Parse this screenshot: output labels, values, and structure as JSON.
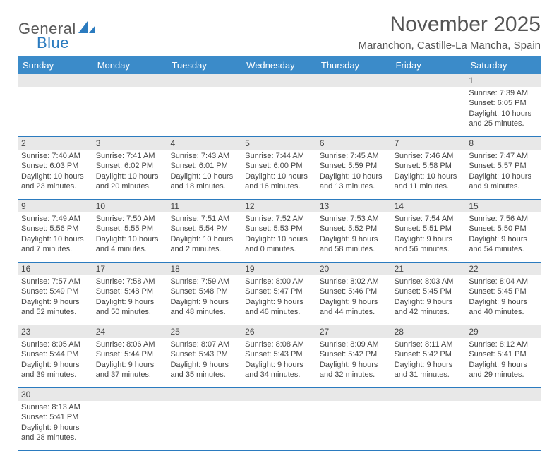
{
  "logo": {
    "part1": "General",
    "part2": "Blue"
  },
  "title": "November 2025",
  "location": "Maranchon, Castille-La Mancha, Spain",
  "day_headers": [
    "Sunday",
    "Monday",
    "Tuesday",
    "Wednesday",
    "Thursday",
    "Friday",
    "Saturday"
  ],
  "colors": {
    "header_bg": "#3b8bc9",
    "border": "#2b7bbf",
    "daynum_bg": "#e8e8e8",
    "text": "#444444",
    "logo_blue": "#2b7bbf"
  },
  "weeks": [
    {
      "nums": [
        "",
        "",
        "",
        "",
        "",
        "",
        "1"
      ],
      "cells": [
        {},
        {},
        {},
        {},
        {},
        {},
        {
          "sunrise": "Sunrise: 7:39 AM",
          "sunset": "Sunset: 6:05 PM",
          "day1": "Daylight: 10 hours",
          "day2": "and 25 minutes."
        }
      ]
    },
    {
      "nums": [
        "2",
        "3",
        "4",
        "5",
        "6",
        "7",
        "8"
      ],
      "cells": [
        {
          "sunrise": "Sunrise: 7:40 AM",
          "sunset": "Sunset: 6:03 PM",
          "day1": "Daylight: 10 hours",
          "day2": "and 23 minutes."
        },
        {
          "sunrise": "Sunrise: 7:41 AM",
          "sunset": "Sunset: 6:02 PM",
          "day1": "Daylight: 10 hours",
          "day2": "and 20 minutes."
        },
        {
          "sunrise": "Sunrise: 7:43 AM",
          "sunset": "Sunset: 6:01 PM",
          "day1": "Daylight: 10 hours",
          "day2": "and 18 minutes."
        },
        {
          "sunrise": "Sunrise: 7:44 AM",
          "sunset": "Sunset: 6:00 PM",
          "day1": "Daylight: 10 hours",
          "day2": "and 16 minutes."
        },
        {
          "sunrise": "Sunrise: 7:45 AM",
          "sunset": "Sunset: 5:59 PM",
          "day1": "Daylight: 10 hours",
          "day2": "and 13 minutes."
        },
        {
          "sunrise": "Sunrise: 7:46 AM",
          "sunset": "Sunset: 5:58 PM",
          "day1": "Daylight: 10 hours",
          "day2": "and 11 minutes."
        },
        {
          "sunrise": "Sunrise: 7:47 AM",
          "sunset": "Sunset: 5:57 PM",
          "day1": "Daylight: 10 hours",
          "day2": "and 9 minutes."
        }
      ]
    },
    {
      "nums": [
        "9",
        "10",
        "11",
        "12",
        "13",
        "14",
        "15"
      ],
      "cells": [
        {
          "sunrise": "Sunrise: 7:49 AM",
          "sunset": "Sunset: 5:56 PM",
          "day1": "Daylight: 10 hours",
          "day2": "and 7 minutes."
        },
        {
          "sunrise": "Sunrise: 7:50 AM",
          "sunset": "Sunset: 5:55 PM",
          "day1": "Daylight: 10 hours",
          "day2": "and 4 minutes."
        },
        {
          "sunrise": "Sunrise: 7:51 AM",
          "sunset": "Sunset: 5:54 PM",
          "day1": "Daylight: 10 hours",
          "day2": "and 2 minutes."
        },
        {
          "sunrise": "Sunrise: 7:52 AM",
          "sunset": "Sunset: 5:53 PM",
          "day1": "Daylight: 10 hours",
          "day2": "and 0 minutes."
        },
        {
          "sunrise": "Sunrise: 7:53 AM",
          "sunset": "Sunset: 5:52 PM",
          "day1": "Daylight: 9 hours",
          "day2": "and 58 minutes."
        },
        {
          "sunrise": "Sunrise: 7:54 AM",
          "sunset": "Sunset: 5:51 PM",
          "day1": "Daylight: 9 hours",
          "day2": "and 56 minutes."
        },
        {
          "sunrise": "Sunrise: 7:56 AM",
          "sunset": "Sunset: 5:50 PM",
          "day1": "Daylight: 9 hours",
          "day2": "and 54 minutes."
        }
      ]
    },
    {
      "nums": [
        "16",
        "17",
        "18",
        "19",
        "20",
        "21",
        "22"
      ],
      "cells": [
        {
          "sunrise": "Sunrise: 7:57 AM",
          "sunset": "Sunset: 5:49 PM",
          "day1": "Daylight: 9 hours",
          "day2": "and 52 minutes."
        },
        {
          "sunrise": "Sunrise: 7:58 AM",
          "sunset": "Sunset: 5:48 PM",
          "day1": "Daylight: 9 hours",
          "day2": "and 50 minutes."
        },
        {
          "sunrise": "Sunrise: 7:59 AM",
          "sunset": "Sunset: 5:48 PM",
          "day1": "Daylight: 9 hours",
          "day2": "and 48 minutes."
        },
        {
          "sunrise": "Sunrise: 8:00 AM",
          "sunset": "Sunset: 5:47 PM",
          "day1": "Daylight: 9 hours",
          "day2": "and 46 minutes."
        },
        {
          "sunrise": "Sunrise: 8:02 AM",
          "sunset": "Sunset: 5:46 PM",
          "day1": "Daylight: 9 hours",
          "day2": "and 44 minutes."
        },
        {
          "sunrise": "Sunrise: 8:03 AM",
          "sunset": "Sunset: 5:45 PM",
          "day1": "Daylight: 9 hours",
          "day2": "and 42 minutes."
        },
        {
          "sunrise": "Sunrise: 8:04 AM",
          "sunset": "Sunset: 5:45 PM",
          "day1": "Daylight: 9 hours",
          "day2": "and 40 minutes."
        }
      ]
    },
    {
      "nums": [
        "23",
        "24",
        "25",
        "26",
        "27",
        "28",
        "29"
      ],
      "cells": [
        {
          "sunrise": "Sunrise: 8:05 AM",
          "sunset": "Sunset: 5:44 PM",
          "day1": "Daylight: 9 hours",
          "day2": "and 39 minutes."
        },
        {
          "sunrise": "Sunrise: 8:06 AM",
          "sunset": "Sunset: 5:44 PM",
          "day1": "Daylight: 9 hours",
          "day2": "and 37 minutes."
        },
        {
          "sunrise": "Sunrise: 8:07 AM",
          "sunset": "Sunset: 5:43 PM",
          "day1": "Daylight: 9 hours",
          "day2": "and 35 minutes."
        },
        {
          "sunrise": "Sunrise: 8:08 AM",
          "sunset": "Sunset: 5:43 PM",
          "day1": "Daylight: 9 hours",
          "day2": "and 34 minutes."
        },
        {
          "sunrise": "Sunrise: 8:09 AM",
          "sunset": "Sunset: 5:42 PM",
          "day1": "Daylight: 9 hours",
          "day2": "and 32 minutes."
        },
        {
          "sunrise": "Sunrise: 8:11 AM",
          "sunset": "Sunset: 5:42 PM",
          "day1": "Daylight: 9 hours",
          "day2": "and 31 minutes."
        },
        {
          "sunrise": "Sunrise: 8:12 AM",
          "sunset": "Sunset: 5:41 PM",
          "day1": "Daylight: 9 hours",
          "day2": "and 29 minutes."
        }
      ]
    },
    {
      "nums": [
        "30",
        "",
        "",
        "",
        "",
        "",
        ""
      ],
      "cells": [
        {
          "sunrise": "Sunrise: 8:13 AM",
          "sunset": "Sunset: 5:41 PM",
          "day1": "Daylight: 9 hours",
          "day2": "and 28 minutes."
        },
        {},
        {},
        {},
        {},
        {},
        {}
      ]
    }
  ]
}
